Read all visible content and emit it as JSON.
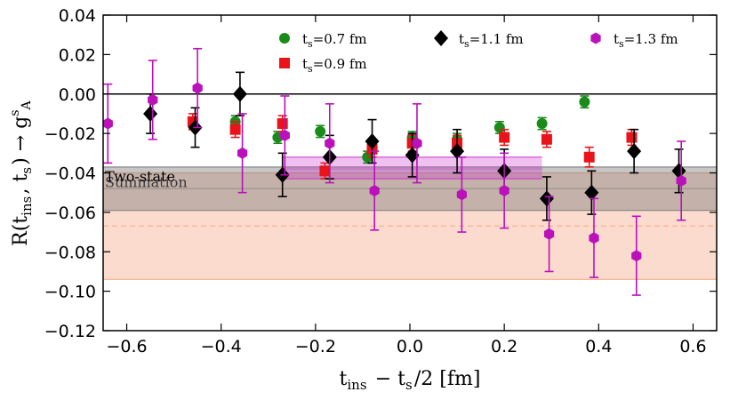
{
  "chart_data": {
    "type": "scatter",
    "title": "",
    "xlabel": "t_ins − t_s/2 [fm]",
    "ylabel": "R(t_ins, t_s) → g_A^s",
    "xlim": [
      -0.65,
      0.65
    ],
    "ylim": [
      -0.12,
      0.04
    ],
    "x_ticks": [
      -0.6,
      -0.4,
      -0.2,
      0.0,
      0.2,
      0.4,
      0.6
    ],
    "x_tick_labels": [
      "−0.6",
      "−0.4",
      "−0.2",
      "0.0",
      "0.2",
      "0.4",
      "0.6"
    ],
    "y_ticks": [
      0.04,
      0.02,
      0.0,
      -0.02,
      -0.04,
      -0.06,
      -0.08,
      -0.1,
      -0.12
    ],
    "y_tick_labels": [
      "0.04",
      "0.02",
      "0.00",
      "−0.02",
      "−0.04",
      "−0.06",
      "−0.08",
      "−0.10",
      "−0.12"
    ],
    "zero_line": 0.0,
    "legend_position": "top",
    "bands": [
      {
        "name": "Summation",
        "label": "Summation",
        "center": -0.067,
        "low": -0.094,
        "high": -0.04,
        "color": "#f4a582"
      },
      {
        "name": "Two-state",
        "label": "Two-state",
        "center": -0.048,
        "low": -0.059,
        "high": -0.037,
        "color": "#808080"
      },
      {
        "name": "t_s=1.3 fm fit",
        "center": -0.038,
        "low": -0.043,
        "high": -0.032,
        "x_range": [
          -0.27,
          0.28
        ],
        "color": "#cc33cc"
      }
    ],
    "series": [
      {
        "name": "t_s=0.7 fm",
        "color": "#1a8a1a",
        "marker": "circle",
        "points": [
          {
            "x": -0.37,
            "y": -0.014,
            "err": 0.003
          },
          {
            "x": -0.28,
            "y": -0.022,
            "err": 0.003
          },
          {
            "x": -0.19,
            "y": -0.019,
            "err": 0.003
          },
          {
            "x": -0.09,
            "y": -0.032,
            "err": 0.003
          },
          {
            "x": 0.005,
            "y": -0.022,
            "err": 0.003
          },
          {
            "x": 0.1,
            "y": -0.023,
            "err": 0.003
          },
          {
            "x": 0.19,
            "y": -0.017,
            "err": 0.003
          },
          {
            "x": 0.28,
            "y": -0.015,
            "err": 0.003
          },
          {
            "x": 0.37,
            "y": -0.004,
            "err": 0.003
          }
        ]
      },
      {
        "name": "t_s=0.9 fm",
        "color": "#e8141a",
        "marker": "square",
        "points": [
          {
            "x": -0.46,
            "y": -0.014,
            "err": 0.004
          },
          {
            "x": -0.37,
            "y": -0.018,
            "err": 0.004
          },
          {
            "x": -0.27,
            "y": -0.015,
            "err": 0.004
          },
          {
            "x": -0.18,
            "y": -0.039,
            "err": 0.004
          },
          {
            "x": -0.08,
            "y": -0.028,
            "err": 0.004
          },
          {
            "x": 0.005,
            "y": -0.025,
            "err": 0.004
          },
          {
            "x": 0.1,
            "y": -0.025,
            "err": 0.004
          },
          {
            "x": 0.2,
            "y": -0.022,
            "err": 0.004
          },
          {
            "x": 0.29,
            "y": -0.023,
            "err": 0.004
          },
          {
            "x": 0.38,
            "y": -0.032,
            "err": 0.005
          },
          {
            "x": 0.47,
            "y": -0.022,
            "err": 0.004
          }
        ]
      },
      {
        "name": "t_s=1.1 fm",
        "color": "#000000",
        "marker": "diamond",
        "points": [
          {
            "x": -0.55,
            "y": -0.01,
            "err": 0.01
          },
          {
            "x": -0.455,
            "y": -0.017,
            "err": 0.01
          },
          {
            "x": -0.36,
            "y": 0.0,
            "err": 0.011
          },
          {
            "x": -0.27,
            "y": -0.041,
            "err": 0.011
          },
          {
            "x": -0.17,
            "y": -0.032,
            "err": 0.011
          },
          {
            "x": -0.08,
            "y": -0.024,
            "err": 0.011
          },
          {
            "x": 0.005,
            "y": -0.031,
            "err": 0.011
          },
          {
            "x": 0.1,
            "y": -0.029,
            "err": 0.011
          },
          {
            "x": 0.2,
            "y": -0.039,
            "err": 0.011
          },
          {
            "x": 0.29,
            "y": -0.053,
            "err": 0.011
          },
          {
            "x": 0.385,
            "y": -0.05,
            "err": 0.011
          },
          {
            "x": 0.475,
            "y": -0.029,
            "err": 0.011
          },
          {
            "x": 0.57,
            "y": -0.039,
            "err": 0.011
          }
        ]
      },
      {
        "name": "t_s=1.3 fm",
        "color": "#bb11bb",
        "marker": "hexagon",
        "points": [
          {
            "x": -0.64,
            "y": -0.015,
            "err": 0.02
          },
          {
            "x": -0.545,
            "y": -0.003,
            "err": 0.02
          },
          {
            "x": -0.45,
            "y": 0.003,
            "err": 0.02
          },
          {
            "x": -0.355,
            "y": -0.03,
            "err": 0.02
          },
          {
            "x": -0.265,
            "y": -0.021,
            "err": 0.02
          },
          {
            "x": -0.17,
            "y": -0.025,
            "err": 0.02
          },
          {
            "x": -0.075,
            "y": -0.049,
            "err": 0.02
          },
          {
            "x": 0.015,
            "y": -0.025,
            "err": 0.02
          },
          {
            "x": 0.11,
            "y": -0.051,
            "err": 0.019
          },
          {
            "x": 0.2,
            "y": -0.049,
            "err": 0.019
          },
          {
            "x": 0.295,
            "y": -0.071,
            "err": 0.019
          },
          {
            "x": 0.39,
            "y": -0.073,
            "err": 0.02
          },
          {
            "x": 0.48,
            "y": -0.082,
            "err": 0.02
          },
          {
            "x": 0.575,
            "y": -0.044,
            "err": 0.02
          }
        ]
      }
    ]
  }
}
